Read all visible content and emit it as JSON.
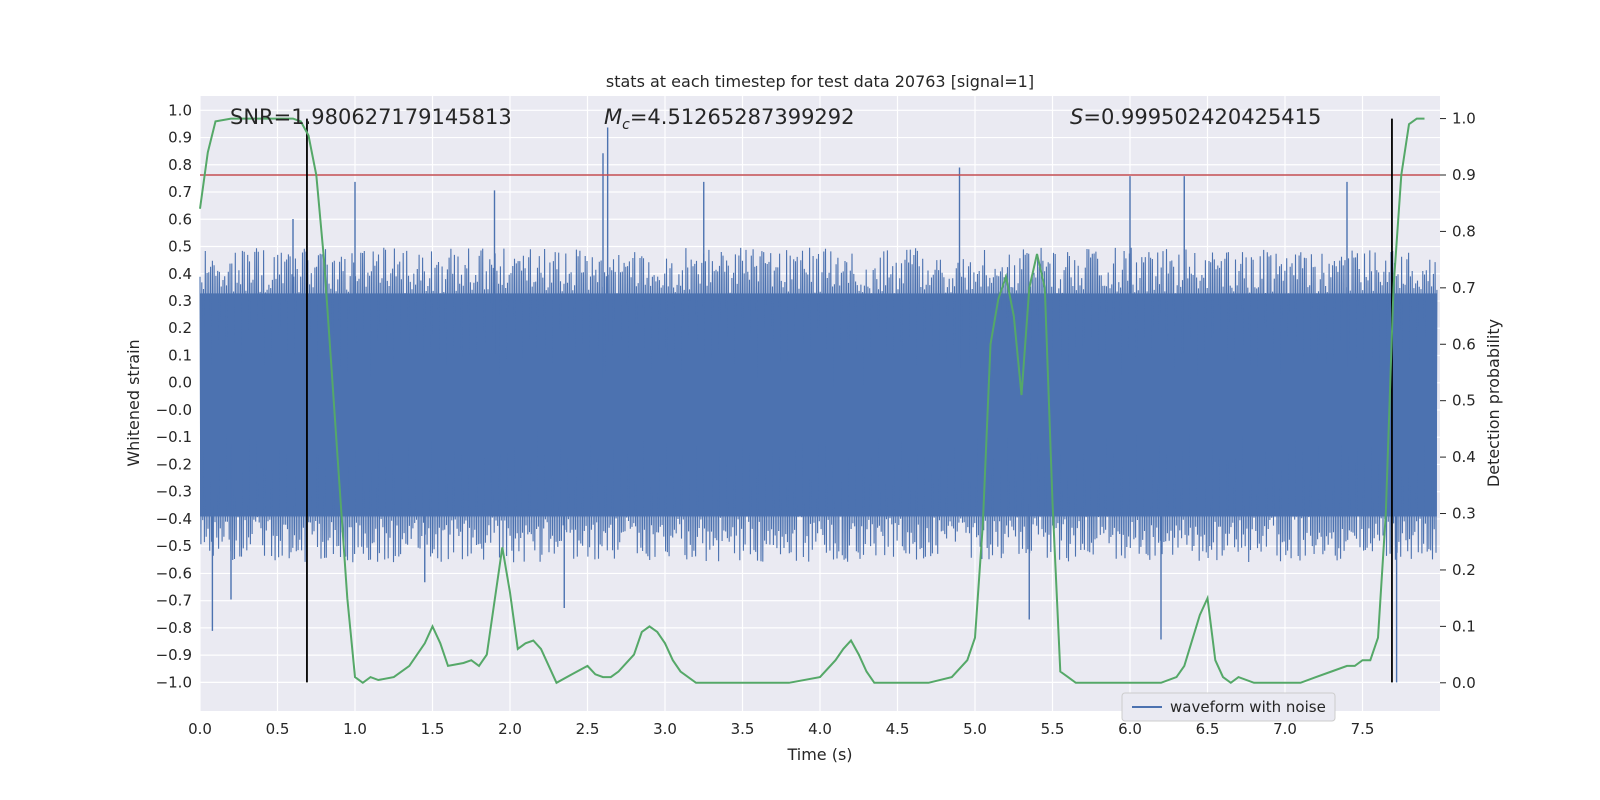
{
  "chart_data": {
    "type": "line",
    "title": "stats at each timestep for test data 20763 [signal=1]",
    "xlabel": "Time (s)",
    "ylabel": "Whitened strain",
    "y2label": "Detection probability",
    "xlim": [
      0.0,
      8.0
    ],
    "ylim": [
      -1.1,
      1.05
    ],
    "y2lim": [
      -0.05,
      1.04
    ],
    "xticks": [
      "0.0",
      "0.5",
      "1.0",
      "1.5",
      "2.0",
      "2.5",
      "3.0",
      "3.5",
      "4.0",
      "4.5",
      "5.0",
      "5.5",
      "6.0",
      "6.5",
      "7.0",
      "7.5"
    ],
    "yticks": [
      "1.0",
      "0.9",
      "0.8",
      "0.7",
      "0.6",
      "0.5",
      "0.4",
      "0.3",
      "0.2",
      "0.1",
      "0.0",
      "−0.0",
      "−0.1",
      "−0.2",
      "−0.3",
      "−0.4",
      "−0.5",
      "−0.6",
      "−0.7",
      "−0.8",
      "−0.9",
      "−1.0"
    ],
    "y2ticks": [
      "1.0",
      "0.9",
      "0.8",
      "0.7",
      "0.6",
      "0.5",
      "0.4",
      "0.3",
      "0.2",
      "0.1",
      "0.0"
    ],
    "annotations": {
      "snr": "SNR=1.980627179145813",
      "mc_prefix": "M",
      "mc_sub": "c",
      "mc_value": "=4.51265287399292",
      "s_prefix": "S",
      "s_value": "=0.999502420425415"
    },
    "legend": {
      "label": "waveform with noise",
      "location": "lower-right"
    },
    "threshold": {
      "value": 0.9,
      "axis": "y2",
      "color": "#c44e52"
    },
    "vlines": [
      0.69,
      7.69
    ],
    "series": [
      {
        "name": "waveform with noise",
        "axis": "y1",
        "color": "#4c72b0",
        "envelope_top_approx": 0.36,
        "envelope_bottom_approx": -0.42,
        "peaks": [
          {
            "x": 0.08,
            "y": -0.82
          },
          {
            "x": 0.2,
            "y": -0.71
          },
          {
            "x": 0.6,
            "y": 0.62
          },
          {
            "x": 1.0,
            "y": 0.75
          },
          {
            "x": 1.45,
            "y": -0.65
          },
          {
            "x": 1.9,
            "y": 0.72
          },
          {
            "x": 2.35,
            "y": -0.74
          },
          {
            "x": 2.6,
            "y": 0.85
          },
          {
            "x": 2.63,
            "y": 0.94
          },
          {
            "x": 3.25,
            "y": 0.75
          },
          {
            "x": 4.9,
            "y": 0.8
          },
          {
            "x": 5.35,
            "y": -0.78
          },
          {
            "x": 6.0,
            "y": 0.77
          },
          {
            "x": 6.2,
            "y": -0.85
          },
          {
            "x": 6.35,
            "y": 0.77
          },
          {
            "x": 7.4,
            "y": 0.75
          },
          {
            "x": 7.72,
            "y": -1.0
          }
        ]
      },
      {
        "name": "detection probability",
        "axis": "y2",
        "color": "#55a868",
        "x": [
          0.0,
          0.05,
          0.1,
          0.2,
          0.3,
          0.4,
          0.5,
          0.6,
          0.65,
          0.7,
          0.75,
          0.8,
          0.85,
          0.9,
          0.95,
          1.0,
          1.05,
          1.1,
          1.15,
          1.25,
          1.35,
          1.45,
          1.5,
          1.55,
          1.6,
          1.7,
          1.75,
          1.8,
          1.85,
          1.95,
          2.0,
          2.05,
          2.1,
          2.15,
          2.2,
          2.3,
          2.4,
          2.5,
          2.55,
          2.6,
          2.65,
          2.7,
          2.8,
          2.85,
          2.9,
          2.95,
          3.0,
          3.05,
          3.1,
          3.2,
          3.3,
          3.45,
          3.6,
          3.8,
          4.0,
          4.1,
          4.15,
          4.2,
          4.25,
          4.3,
          4.35,
          4.45,
          4.55,
          4.7,
          4.85,
          4.95,
          5.0,
          5.05,
          5.1,
          5.15,
          5.2,
          5.25,
          5.3,
          5.35,
          5.4,
          5.45,
          5.5,
          5.55,
          5.6,
          5.65,
          5.75,
          5.9,
          6.05,
          6.2,
          6.3,
          6.35,
          6.45,
          6.5,
          6.55,
          6.6,
          6.65,
          6.7,
          6.8,
          6.9,
          7.0,
          7.1,
          7.2,
          7.3,
          7.4,
          7.45,
          7.5,
          7.55,
          7.6,
          7.65,
          7.7,
          7.75,
          7.8,
          7.85,
          7.9
        ],
        "y": [
          0.84,
          0.94,
          0.995,
          1.0,
          1.0,
          1.0,
          1.0,
          1.0,
          0.995,
          0.97,
          0.9,
          0.75,
          0.55,
          0.35,
          0.15,
          0.01,
          0.0,
          0.01,
          0.005,
          0.01,
          0.03,
          0.07,
          0.1,
          0.07,
          0.03,
          0.035,
          0.04,
          0.03,
          0.05,
          0.24,
          0.16,
          0.06,
          0.07,
          0.075,
          0.06,
          0.0,
          0.015,
          0.03,
          0.015,
          0.01,
          0.01,
          0.02,
          0.05,
          0.09,
          0.1,
          0.09,
          0.07,
          0.04,
          0.02,
          0.0,
          0.0,
          0.0,
          0.0,
          0.0,
          0.01,
          0.04,
          0.06,
          0.075,
          0.05,
          0.02,
          0.0,
          0.0,
          0.0,
          0.0,
          0.01,
          0.04,
          0.08,
          0.28,
          0.6,
          0.68,
          0.72,
          0.65,
          0.51,
          0.7,
          0.76,
          0.7,
          0.32,
          0.02,
          0.01,
          0.0,
          0.0,
          0.0,
          0.0,
          0.0,
          0.01,
          0.03,
          0.12,
          0.15,
          0.04,
          0.01,
          0.0,
          0.01,
          0.0,
          0.0,
          0.0,
          0.0,
          0.01,
          0.02,
          0.03,
          0.03,
          0.04,
          0.04,
          0.08,
          0.3,
          0.7,
          0.9,
          0.99,
          1.0,
          1.0
        ]
      }
    ]
  }
}
